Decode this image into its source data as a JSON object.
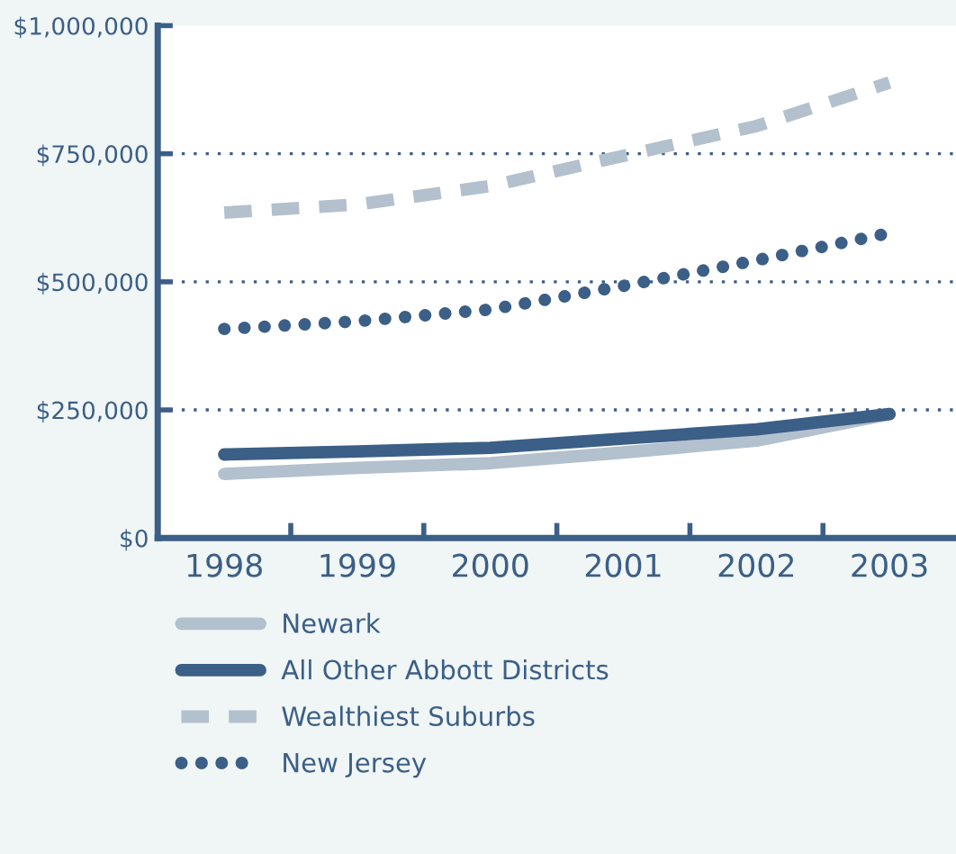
{
  "chart_data": {
    "type": "line",
    "categories": [
      "1998",
      "1999",
      "2000",
      "2001",
      "2002",
      "2003"
    ],
    "series": [
      {
        "name": "Newark",
        "color": "#b3c0cd",
        "line_style": "solid",
        "values": [
          125000,
          137000,
          146000,
          167000,
          190000,
          242000
        ]
      },
      {
        "name": "All Other Abbott Districts",
        "color": "#3b5f86",
        "line_style": "solid",
        "values": [
          163000,
          169000,
          176000,
          194000,
          212000,
          242000
        ]
      },
      {
        "name": "Wealthiest Suburbs",
        "color": "#b3c0cd",
        "line_style": "dashed",
        "values": [
          635000,
          651000,
          687000,
          746000,
          804000,
          889000
        ]
      },
      {
        "name": "New Jersey",
        "color": "#3b5f86",
        "line_style": "dotted",
        "values": [
          408000,
          423000,
          446000,
          492000,
          542000,
          595000
        ]
      }
    ],
    "ylim": [
      0,
      1000000
    ],
    "yticks": [
      {
        "value": 0,
        "label": "$0"
      },
      {
        "value": 250000,
        "label": "$250,000"
      },
      {
        "value": 500000,
        "label": "$500,000"
      },
      {
        "value": 750000,
        "label": "$750,000"
      },
      {
        "value": 1000000,
        "label": "$1,000,000"
      }
    ],
    "grid": "y",
    "legend": "bottom",
    "marker": "none"
  }
}
